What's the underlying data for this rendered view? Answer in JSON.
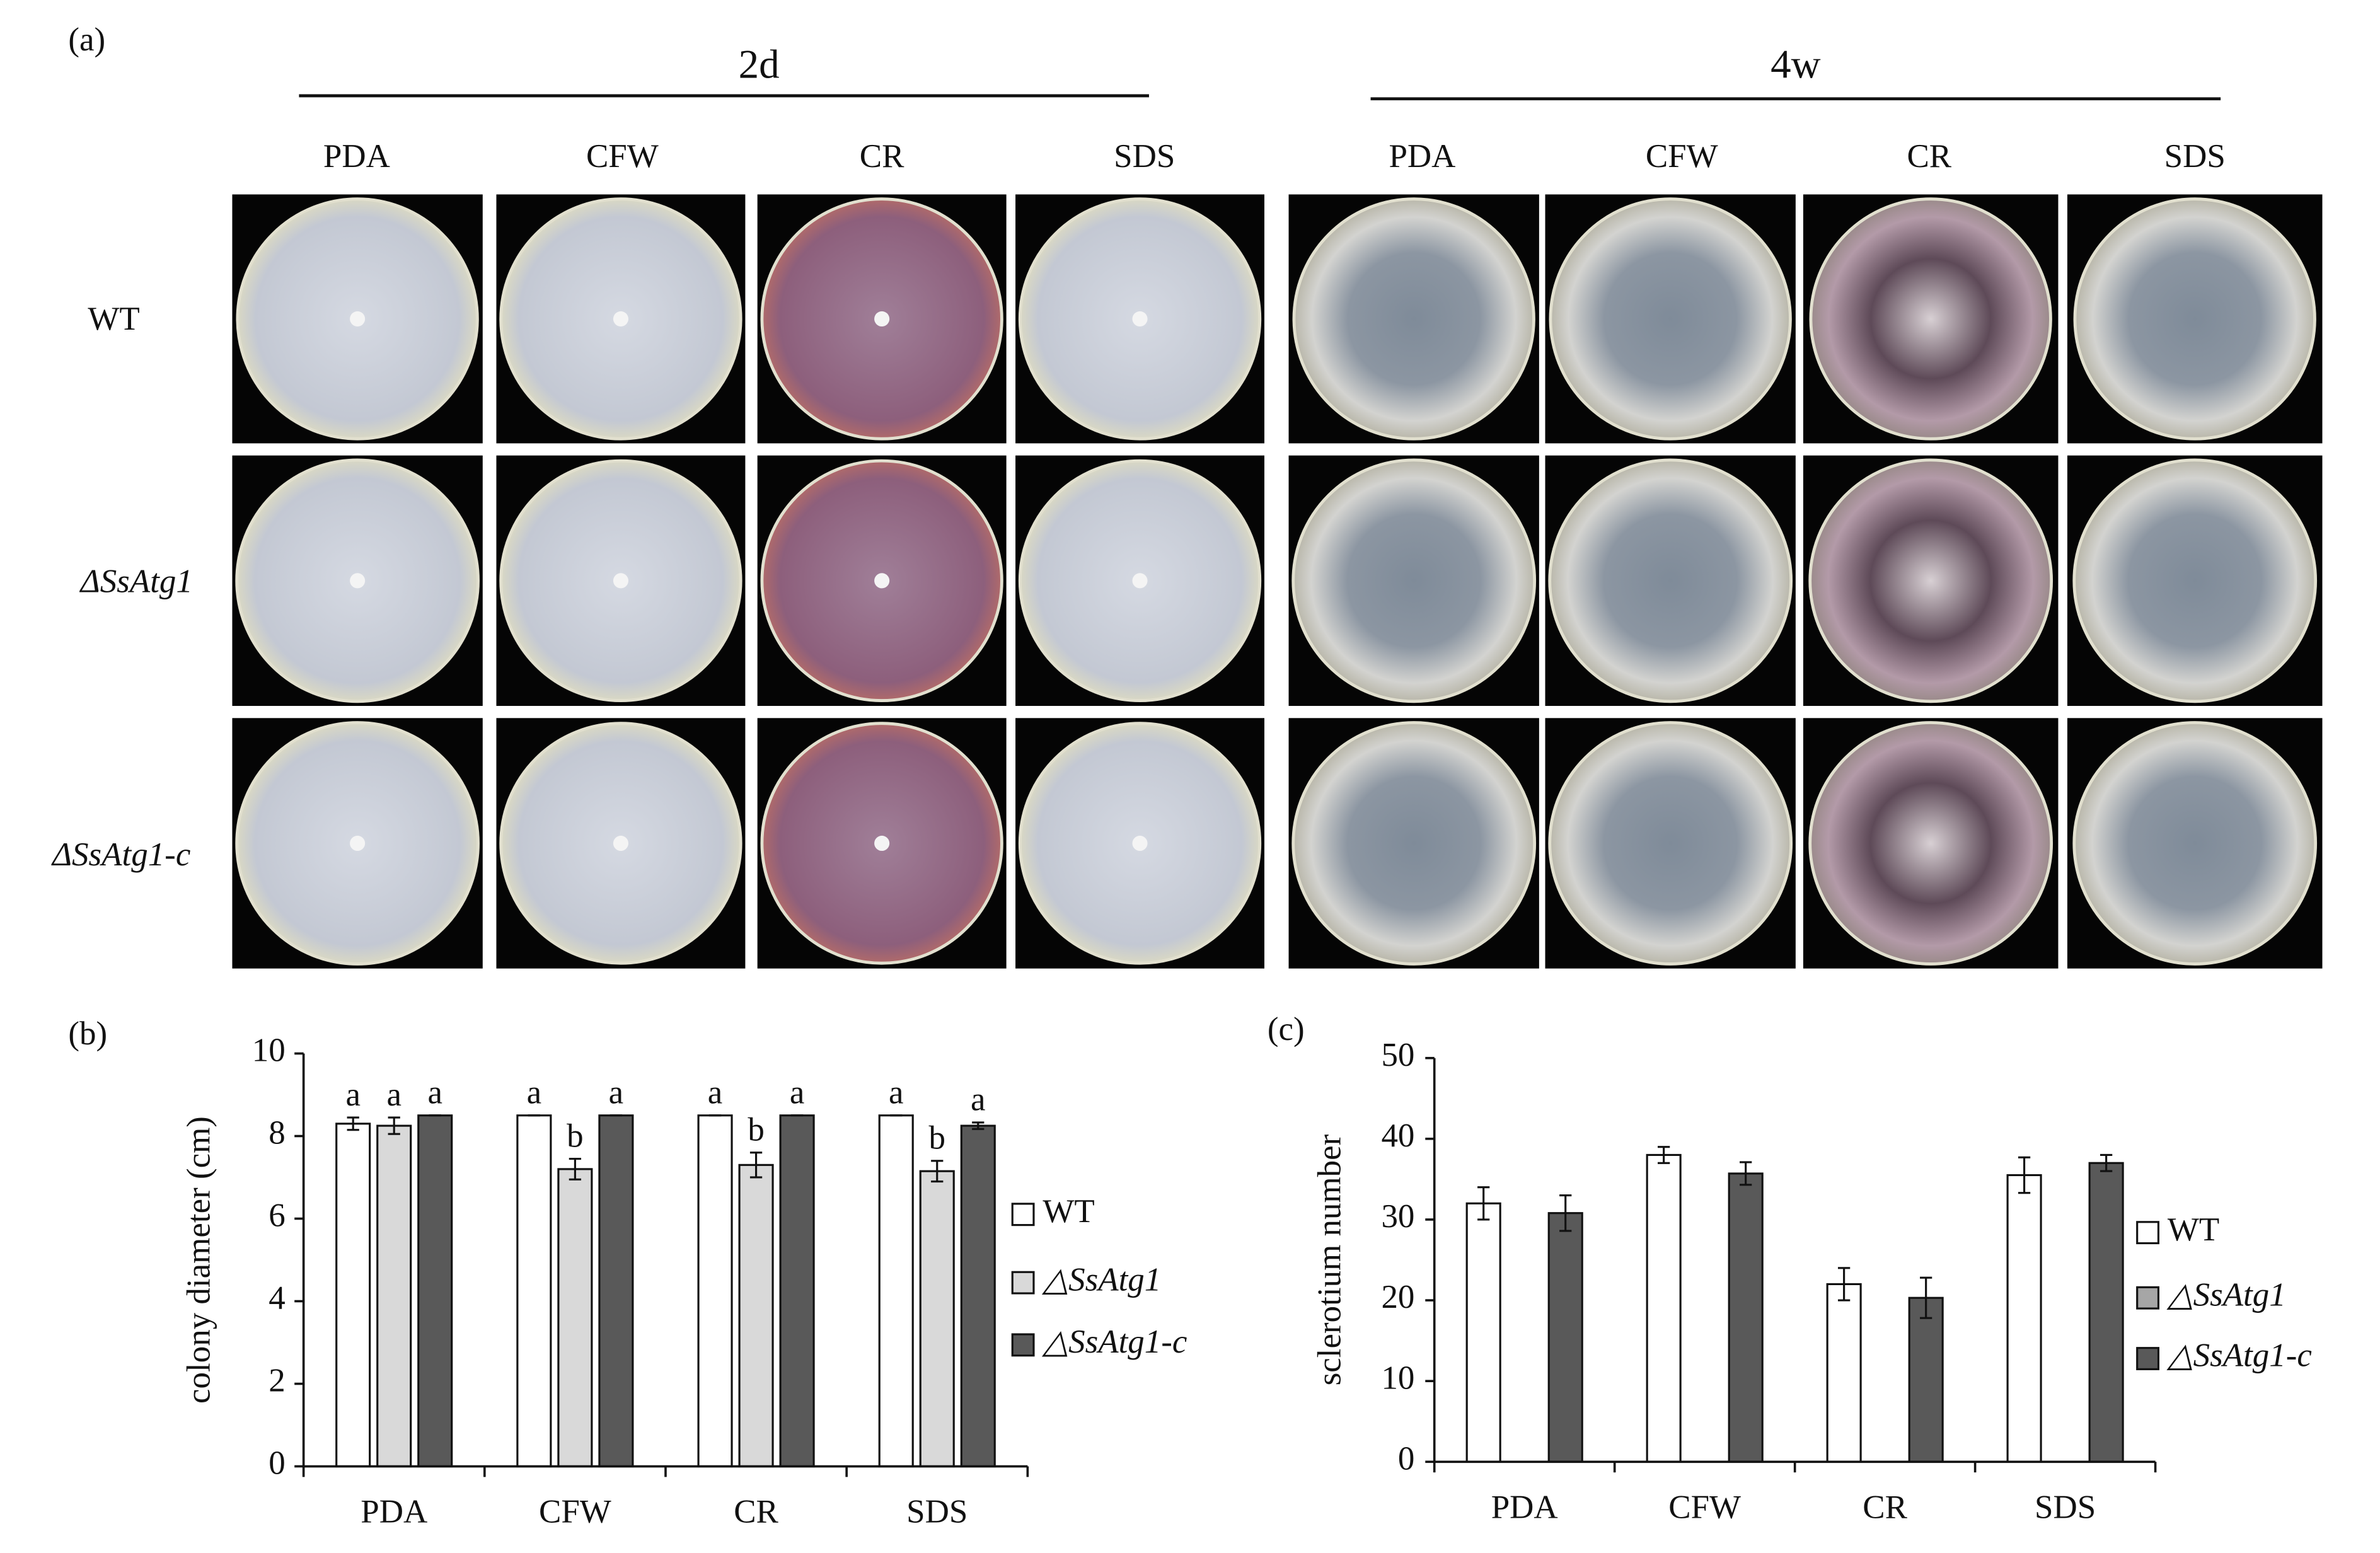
{
  "panel_a": {
    "label": "(a)",
    "group_labels": [
      "2d",
      "4w"
    ],
    "columns": [
      "PDA",
      "CFW",
      "CR",
      "SDS",
      "PDA",
      "CFW",
      "CR",
      "SDS"
    ],
    "rows": [
      "WT",
      "ΔSsAtg1",
      "ΔSsAtg1-c"
    ]
  },
  "chart_data": [
    {
      "type": "bar",
      "panel": "(b)",
      "ylabel": "colony diameter (cm)",
      "categories": [
        "PDA",
        "CFW",
        "CR",
        "SDS"
      ],
      "ylim": [
        0,
        10
      ],
      "yticks": [
        0,
        2,
        4,
        6,
        8,
        10
      ],
      "series": [
        {
          "name": "WT",
          "color": "#ffffff",
          "values": [
            8.3,
            8.5,
            8.5,
            8.5
          ],
          "errors": [
            0.15,
            0,
            0,
            0
          ],
          "letters": [
            "a",
            "a",
            "a",
            "a"
          ]
        },
        {
          "name": "△SsAtg1",
          "color": "#d9d9d9",
          "values": [
            8.25,
            7.2,
            7.3,
            7.15
          ],
          "errors": [
            0.2,
            0.25,
            0.3,
            0.25
          ],
          "letters": [
            "a",
            "b",
            "b",
            "b"
          ]
        },
        {
          "name": "△SsAtg1-c",
          "color": "#595959",
          "values": [
            8.5,
            8.5,
            8.5,
            8.25
          ],
          "errors": [
            0,
            0,
            0,
            0.08
          ],
          "letters": [
            "a",
            "a",
            "a",
            "a"
          ]
        }
      ]
    },
    {
      "type": "bar",
      "panel": "(c)",
      "ylabel": "sclerotium number",
      "categories": [
        "PDA",
        "CFW",
        "CR",
        "SDS"
      ],
      "ylim": [
        0,
        50
      ],
      "yticks": [
        0,
        10,
        20,
        30,
        40,
        50
      ],
      "series": [
        {
          "name": "WT",
          "color": "#ffffff",
          "values": [
            32,
            38,
            22,
            35.5
          ],
          "errors": [
            2,
            1,
            2,
            2.2
          ]
        },
        {
          "name": "△SsAtg1",
          "color": "#a6a6a6",
          "values": [
            null,
            null,
            null,
            null
          ],
          "errors": [
            null,
            null,
            null,
            null
          ]
        },
        {
          "name": "△SsAtg1-c",
          "color": "#595959",
          "values": [
            30.8,
            35.7,
            20.3,
            37
          ],
          "errors": [
            2.2,
            1.4,
            2.5,
            1
          ]
        }
      ]
    }
  ]
}
